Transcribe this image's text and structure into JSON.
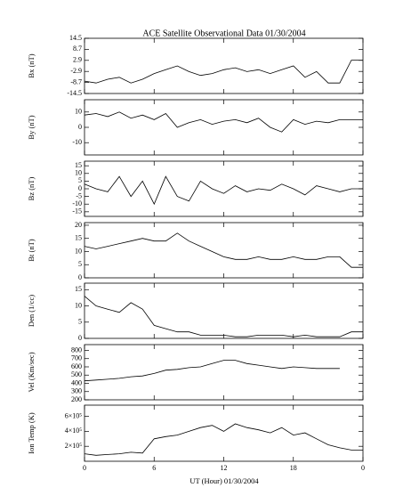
{
  "title": "ACE Satellite Observational Data   01/30/2004",
  "xlabel": "UT (Hour)   01/30/2004",
  "xlim": [
    0,
    24
  ],
  "xticks": [
    0,
    6,
    12,
    18,
    {
      "value": 24,
      "label": "0"
    }
  ],
  "x": [
    0,
    1,
    2,
    3,
    4,
    5,
    6,
    7,
    8,
    9,
    10,
    11,
    12,
    13,
    14,
    15,
    16,
    17,
    18,
    19,
    20,
    21,
    22,
    23,
    24
  ],
  "chart_data": [
    {
      "type": "line",
      "ylabel": "Bx (nT)",
      "color": "#000000",
      "ylim": [
        -14.5,
        14.5
      ],
      "yticks": [
        14.5,
        8.7,
        2.9,
        -2.9,
        -8.7,
        -14.5
      ],
      "values": [
        -8,
        -9,
        -7,
        -6,
        -9,
        -7,
        -4,
        -2,
        0,
        -3,
        -5,
        -4,
        -2,
        -1,
        -3,
        -2,
        -4,
        -2,
        0,
        -6,
        -3,
        -9,
        -9,
        3,
        3
      ]
    },
    {
      "type": "line",
      "ylabel": "By (nT)",
      "color": "#000000",
      "ylim": [
        -18,
        18
      ],
      "yticks": [
        10,
        0,
        -10
      ],
      "values": [
        8,
        9,
        7,
        10,
        6,
        8,
        5,
        9,
        0,
        3,
        5,
        2,
        4,
        5,
        3,
        6,
        0,
        -3,
        5,
        2,
        4,
        3,
        5,
        5,
        5
      ]
    },
    {
      "type": "line",
      "ylabel": "Bz (nT)",
      "color": "#000000",
      "ylim": [
        -18,
        18
      ],
      "yticks": [
        15,
        10,
        5,
        0,
        -5,
        -10,
        -15
      ],
      "values": [
        3,
        0,
        -2,
        8,
        -5,
        5,
        -10,
        8,
        -5,
        -8,
        5,
        0,
        -3,
        2,
        -2,
        0,
        -1,
        3,
        0,
        -4,
        2,
        0,
        -2,
        0,
        0
      ]
    },
    {
      "type": "line",
      "ylabel": "Bt (nT)",
      "color": "#000000",
      "ylim": [
        0,
        21
      ],
      "yticks": [
        0,
        5,
        10,
        15,
        20
      ],
      "values": [
        12,
        11,
        12,
        13,
        14,
        15,
        14,
        14,
        17,
        14,
        12,
        10,
        8,
        7,
        7,
        8,
        7,
        7,
        8,
        7,
        7,
        8,
        8,
        4,
        4
      ]
    },
    {
      "type": "line",
      "ylabel": "Den (1/cc)",
      "color": "#000000",
      "ylim": [
        0,
        17
      ],
      "yticks": [
        0,
        5,
        10,
        15
      ],
      "values": [
        13,
        10,
        9,
        8,
        11,
        9,
        4,
        3,
        2,
        2,
        1,
        1,
        1,
        0.5,
        0.5,
        1,
        1,
        1,
        0.5,
        1,
        0.5,
        0.5,
        0.5,
        2,
        2
      ]
    },
    {
      "type": "line",
      "ylabel": "Vel (Km/sec)",
      "color": "#000000",
      "ylim": [
        200,
        870
      ],
      "yticks": [
        200,
        300,
        400,
        500,
        600,
        700,
        800
      ],
      "values": [
        430,
        440,
        450,
        460,
        480,
        490,
        520,
        560,
        570,
        590,
        600,
        640,
        680,
        680,
        640,
        620,
        600,
        580,
        600,
        590,
        580,
        580,
        580,
        null,
        null
      ]
    },
    {
      "type": "line",
      "ylabel": "Ion Temp (K)",
      "color": "#000000",
      "ylim": [
        0,
        750000
      ],
      "yticks": [
        {
          "value": 200000,
          "label": "2×10⁵"
        },
        {
          "value": 400000,
          "label": "4×10⁵"
        },
        {
          "value": 600000,
          "label": "6×10⁵"
        }
      ],
      "values": [
        100000,
        80000,
        90000,
        100000,
        120000,
        110000,
        300000,
        330000,
        350000,
        400000,
        450000,
        480000,
        400000,
        500000,
        450000,
        420000,
        380000,
        450000,
        350000,
        380000,
        300000,
        220000,
        180000,
        150000,
        150000
      ]
    }
  ]
}
